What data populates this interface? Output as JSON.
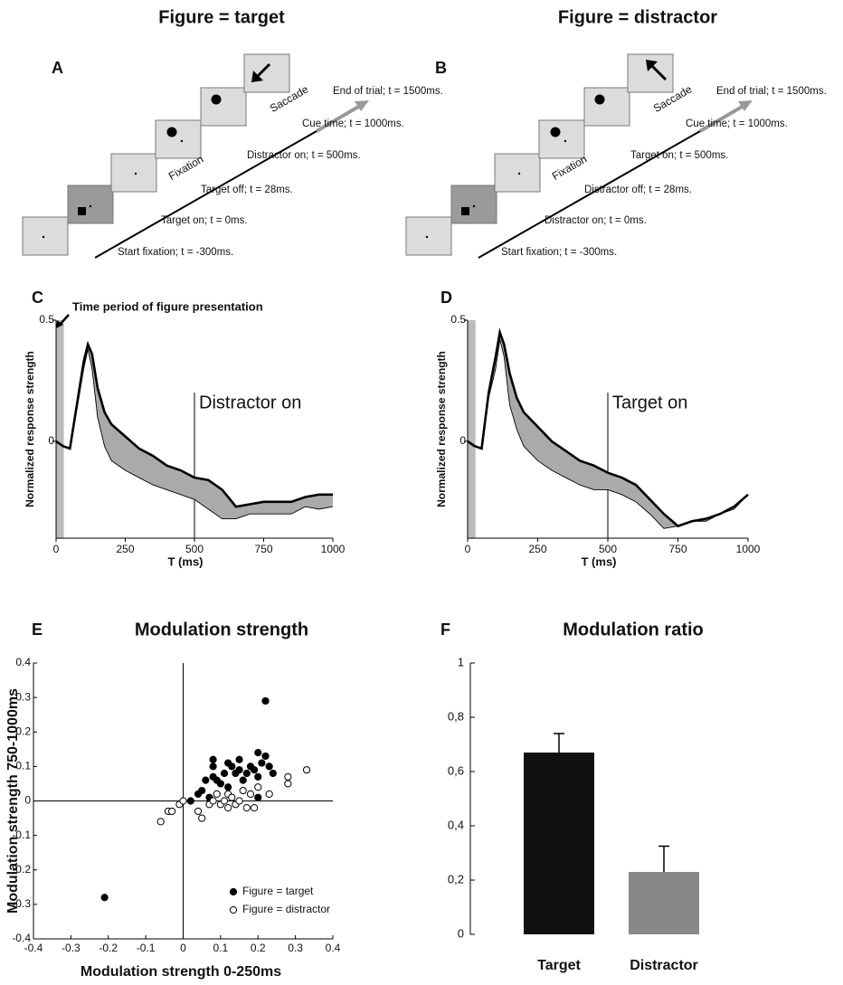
{
  "headers": [
    "Figure = target",
    "Figure = distractor"
  ],
  "diagrams": [
    {
      "label": "A",
      "fixation": "Fixation",
      "saccade": "Saccade",
      "events": [
        "Start fixation; t = -300ms.",
        "Target on; t = 0ms.",
        "Target off; t = 28ms.",
        "Distractor on; t = 500ms.",
        "Cue time; t = 1000ms.",
        "End of trial; t = 1500ms."
      ]
    },
    {
      "label": "B",
      "fixation": "Fixation",
      "saccade": "Saccade",
      "events": [
        "Start fixation; t = -300ms.",
        "Distractor on; t = 0ms.",
        "Distractor off; t = 28ms.",
        "Target on; t = 500ms.",
        "Cue time; t = 1000ms.",
        "End of trial; t = 1500ms."
      ]
    }
  ],
  "chart_data": [
    {
      "type": "line",
      "label": "C",
      "annotation": "Time period of figure presentation",
      "marker_label": "Distractor on",
      "marker_x": 500,
      "shade": [
        0,
        28
      ],
      "ylabel": "Normalized response strength",
      "xlabel": "T (ms)",
      "xlim": [
        0,
        1000
      ],
      "xticks": [
        0,
        250,
        500,
        750,
        1000
      ],
      "ylim": [
        -0.4,
        0.5
      ],
      "yticks": [
        0,
        0.5
      ],
      "x": [
        0,
        25,
        50,
        75,
        100,
        115,
        130,
        150,
        175,
        200,
        250,
        300,
        350,
        400,
        450,
        500,
        550,
        600,
        650,
        700,
        750,
        800,
        850,
        900,
        950,
        1000
      ],
      "series": [
        {
          "color": "#000000",
          "values": [
            0,
            -0.02,
            -0.03,
            0.15,
            0.33,
            0.4,
            0.36,
            0.22,
            0.12,
            0.07,
            0.02,
            -0.03,
            -0.06,
            -0.1,
            -0.12,
            -0.15,
            -0.16,
            -0.2,
            -0.27,
            -0.26,
            -0.25,
            -0.25,
            -0.25,
            -0.23,
            -0.22,
            -0.22
          ]
        },
        {
          "color": "#000000",
          "values": [
            0,
            -0.02,
            -0.03,
            0.13,
            0.3,
            0.38,
            0.3,
            0.1,
            -0.02,
            -0.08,
            -0.12,
            -0.15,
            -0.18,
            -0.2,
            -0.22,
            -0.24,
            -0.28,
            -0.32,
            -0.32,
            -0.3,
            -0.3,
            -0.3,
            -0.3,
            -0.27,
            -0.28,
            -0.27
          ]
        }
      ],
      "fill_color": "#aaaaaa"
    },
    {
      "type": "line",
      "label": "D",
      "marker_label": "Target on",
      "marker_x": 500,
      "shade": [
        0,
        28
      ],
      "ylabel": "Normalized response strength",
      "xlabel": "T (ms)",
      "xlim": [
        0,
        1000
      ],
      "xticks": [
        0,
        250,
        500,
        750,
        1000
      ],
      "ylim": [
        -0.4,
        0.5
      ],
      "yticks": [
        0,
        0.5
      ],
      "x": [
        0,
        25,
        50,
        75,
        100,
        115,
        130,
        150,
        175,
        200,
        250,
        300,
        350,
        400,
        450,
        500,
        550,
        600,
        650,
        700,
        750,
        800,
        850,
        900,
        950,
        1000
      ],
      "series": [
        {
          "color": "#000000",
          "values": [
            0,
            -0.02,
            -0.03,
            0.2,
            0.35,
            0.45,
            0.4,
            0.28,
            0.18,
            0.12,
            0.06,
            0,
            -0.04,
            -0.08,
            -0.1,
            -0.13,
            -0.15,
            -0.18,
            -0.24,
            -0.3,
            -0.35,
            -0.33,
            -0.32,
            -0.3,
            -0.27,
            -0.22
          ]
        },
        {
          "color": "#000000",
          "values": [
            0,
            -0.02,
            -0.03,
            0.18,
            0.3,
            0.42,
            0.35,
            0.15,
            0.05,
            -0.02,
            -0.08,
            -0.12,
            -0.15,
            -0.18,
            -0.2,
            -0.2,
            -0.22,
            -0.25,
            -0.3,
            -0.36,
            -0.35,
            -0.33,
            -0.33,
            -0.3,
            -0.28,
            -0.22
          ]
        }
      ],
      "fill_color": "#aaaaaa"
    },
    {
      "type": "scatter",
      "label": "E",
      "title": "Modulation strength",
      "xlabel": "Modulation strength 0-250ms",
      "ylabel": "Modulation strength 750-1000ms",
      "xlim": [
        -0.4,
        0.4
      ],
      "xticks": [
        -0.4,
        -0.3,
        -0.2,
        -0.1,
        0,
        0.1,
        0.2,
        0.3,
        0.4
      ],
      "ylim": [
        -0.4,
        0.4
      ],
      "yticks": [
        -0.4,
        -0.3,
        -0.2,
        -0.1,
        0,
        0.1,
        0.2,
        0.3,
        0.4
      ],
      "series": [
        {
          "name": "Figure = target",
          "color": "#000000",
          "marker": "filled",
          "x": [
            0.22,
            -0.21,
            0.02,
            0.04,
            0.07,
            0.08,
            0.08,
            0.08,
            0.09,
            0.1,
            0.11,
            0.12,
            0.12,
            0.13,
            0.14,
            0.15,
            0.15,
            0.16,
            0.17,
            0.18,
            0.19,
            0.2,
            0.2,
            0.21,
            0.22,
            0.23,
            0.24,
            0.2,
            0.05,
            0.06
          ],
          "values": [
            0.29,
            -0.28,
            0,
            0.02,
            0.01,
            0.12,
            0.1,
            0.07,
            0.06,
            0.05,
            0.08,
            0.11,
            0.04,
            0.1,
            0.08,
            0.12,
            0.09,
            0.06,
            0.08,
            0.1,
            0.09,
            0.14,
            0.07,
            0.11,
            0.13,
            0.1,
            0.08,
            0.01,
            0.03,
            0.06
          ]
        },
        {
          "name": "Figure = distractor",
          "color": "#000000",
          "marker": "open",
          "x": [
            0.33,
            0.28,
            0.28,
            0.2,
            0.19,
            0.23,
            -0.06,
            -0.04,
            -0.03,
            -0.01,
            0,
            0.04,
            0.05,
            0.07,
            0.09,
            0.1,
            0.11,
            0.12,
            0.13,
            0.14,
            0.15,
            0.16,
            0.17,
            0.18,
            0.12,
            0.08
          ],
          "values": [
            0.09,
            0.07,
            0.05,
            0.04,
            -0.02,
            0.02,
            -0.06,
            -0.03,
            -0.03,
            -0.01,
            0,
            -0.03,
            -0.05,
            -0.01,
            0.02,
            -0.01,
            0,
            0.02,
            0.01,
            -0.01,
            0,
            0.03,
            -0.02,
            0.02,
            -0.02,
            0
          ]
        }
      ],
      "legend": "lower right"
    },
    {
      "type": "bar",
      "label": "F",
      "title": "Modulation ratio",
      "categories": [
        "Target",
        "Distractor"
      ],
      "values": [
        0.67,
        0.23
      ],
      "errors": [
        0.07,
        0.095
      ],
      "colors": [
        "#111111",
        "#888888"
      ],
      "ylim": [
        0,
        1
      ],
      "yticks": [
        0,
        {
          "value": 0.2,
          "label": "0,2"
        },
        {
          "value": 0.4,
          "label": "0,4"
        },
        {
          "value": 0.6,
          "label": "0,6"
        },
        {
          "value": 0.8,
          "label": "0,8"
        },
        1
      ]
    }
  ]
}
